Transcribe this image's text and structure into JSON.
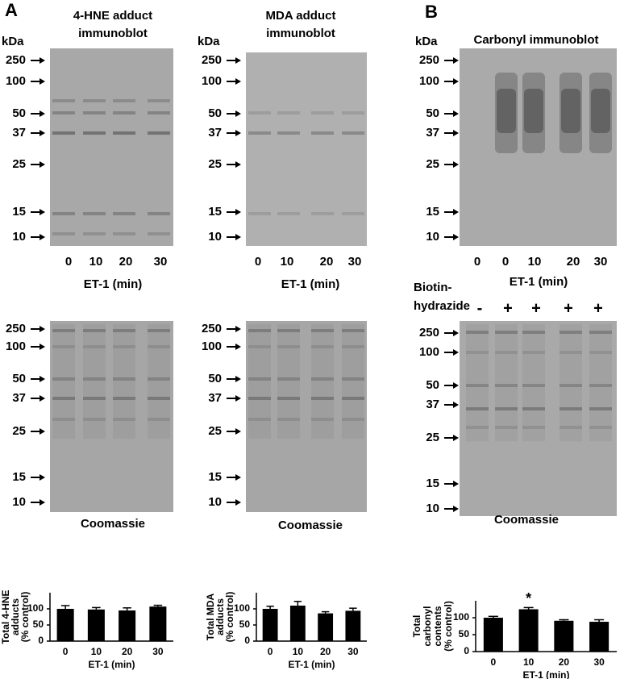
{
  "panel_labels": [
    "A",
    "B"
  ],
  "blots": [
    {
      "title": [
        "4-HNE adduct",
        "immunoblot"
      ],
      "unit": "kDa",
      "markers": [
        "250",
        "100",
        "50",
        "37",
        "25",
        "15",
        "10"
      ],
      "lanes": [
        "0",
        "10",
        "20",
        "30"
      ],
      "xlabel": "ET-1 (min)"
    },
    {
      "title": [
        "MDA adduct",
        "immunoblot"
      ],
      "unit": "kDa",
      "markers": [
        "250",
        "100",
        "50",
        "37",
        "25",
        "15",
        "10"
      ],
      "lanes": [
        "0",
        "10",
        "20",
        "30"
      ],
      "xlabel": "ET-1 (min)"
    },
    {
      "title": [
        "Carbonyl immunoblot"
      ],
      "unit": "kDa",
      "markers": [
        "250",
        "100",
        "50",
        "37",
        "25",
        "15",
        "10"
      ],
      "lanes": [
        "0",
        "0",
        "10",
        "20",
        "30"
      ],
      "xlabel": "ET-1 (min)",
      "treatment_label": [
        "Biotin-",
        "hydrazide"
      ],
      "treatment": [
        "-",
        "+",
        "+",
        "+",
        "+"
      ]
    },
    {
      "markers": [
        "250",
        "100",
        "50",
        "37",
        "25",
        "15",
        "10"
      ],
      "caption": "Coomassie"
    },
    {
      "markers": [
        "250",
        "100",
        "50",
        "37",
        "25",
        "15",
        "10"
      ],
      "caption": "Coomassie"
    },
    {
      "markers": [
        "250",
        "100",
        "50",
        "37",
        "25",
        "15",
        "10"
      ],
      "caption": "Coomassie"
    }
  ],
  "chart_data": [
    {
      "type": "bar",
      "ylabel": [
        "Total 4-HNE",
        "adducts",
        "(% control)"
      ],
      "xlabel": "ET-1 (min)",
      "categories": [
        "0",
        "10",
        "20",
        "30"
      ],
      "values": [
        100,
        98,
        95,
        107
      ],
      "errors": [
        10,
        6,
        8,
        4
      ],
      "color": "#000000",
      "ylim": [
        0,
        150
      ],
      "yticks": [
        0,
        50,
        100
      ]
    },
    {
      "type": "bar",
      "ylabel": [
        "Total MDA",
        "adducts",
        "(% control)"
      ],
      "xlabel": "ET-1 (min)",
      "categories": [
        "0",
        "10",
        "20",
        "30"
      ],
      "values": [
        100,
        110,
        86,
        94
      ],
      "errors": [
        8,
        13,
        5,
        8
      ],
      "color": "#000000",
      "ylim": [
        0,
        150
      ],
      "yticks": [
        0,
        50,
        100
      ]
    },
    {
      "type": "bar",
      "ylabel": [
        "Total",
        "carbonyl",
        "contents",
        "(% control)"
      ],
      "xlabel": "ET-1 (min)",
      "categories": [
        "0",
        "10",
        "20",
        "30"
      ],
      "values": [
        100,
        125,
        91,
        88
      ],
      "errors": [
        4,
        5,
        3,
        6
      ],
      "significance": [
        null,
        "*",
        null,
        null
      ],
      "color": "#000000",
      "ylim": [
        0,
        150
      ],
      "yticks": [
        0,
        50,
        100
      ]
    }
  ]
}
